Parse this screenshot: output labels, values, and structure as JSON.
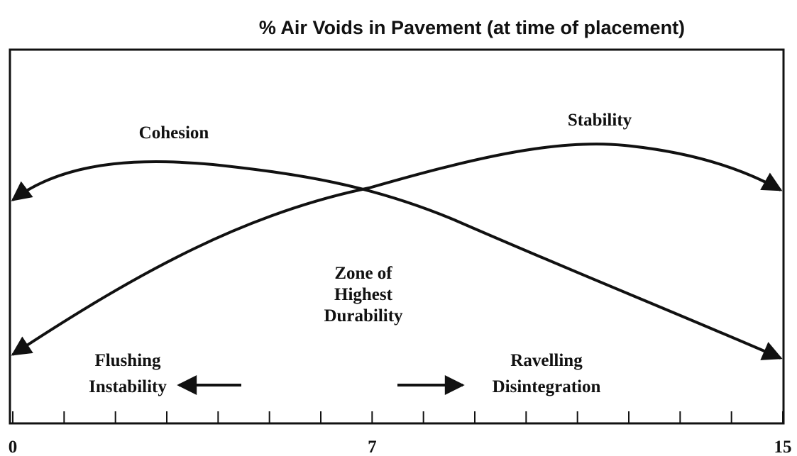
{
  "title": "% Air Voids in Pavement (at time of placement)",
  "curves": {
    "cohesion": "Cohesion",
    "stability": "Stability"
  },
  "zone": [
    "Zone of",
    "Highest",
    "Durability"
  ],
  "left_zone": [
    "Flushing",
    "Instability"
  ],
  "right_zone": [
    "Ravelling",
    "Disintegration"
  ],
  "axis": {
    "xlim": [
      0,
      15
    ],
    "xticks": [
      0,
      1,
      2,
      3,
      4,
      5,
      6,
      7,
      8,
      9,
      10,
      11,
      12,
      13,
      14,
      15
    ],
    "labeled_ticks": [
      0,
      7,
      15
    ]
  }
}
